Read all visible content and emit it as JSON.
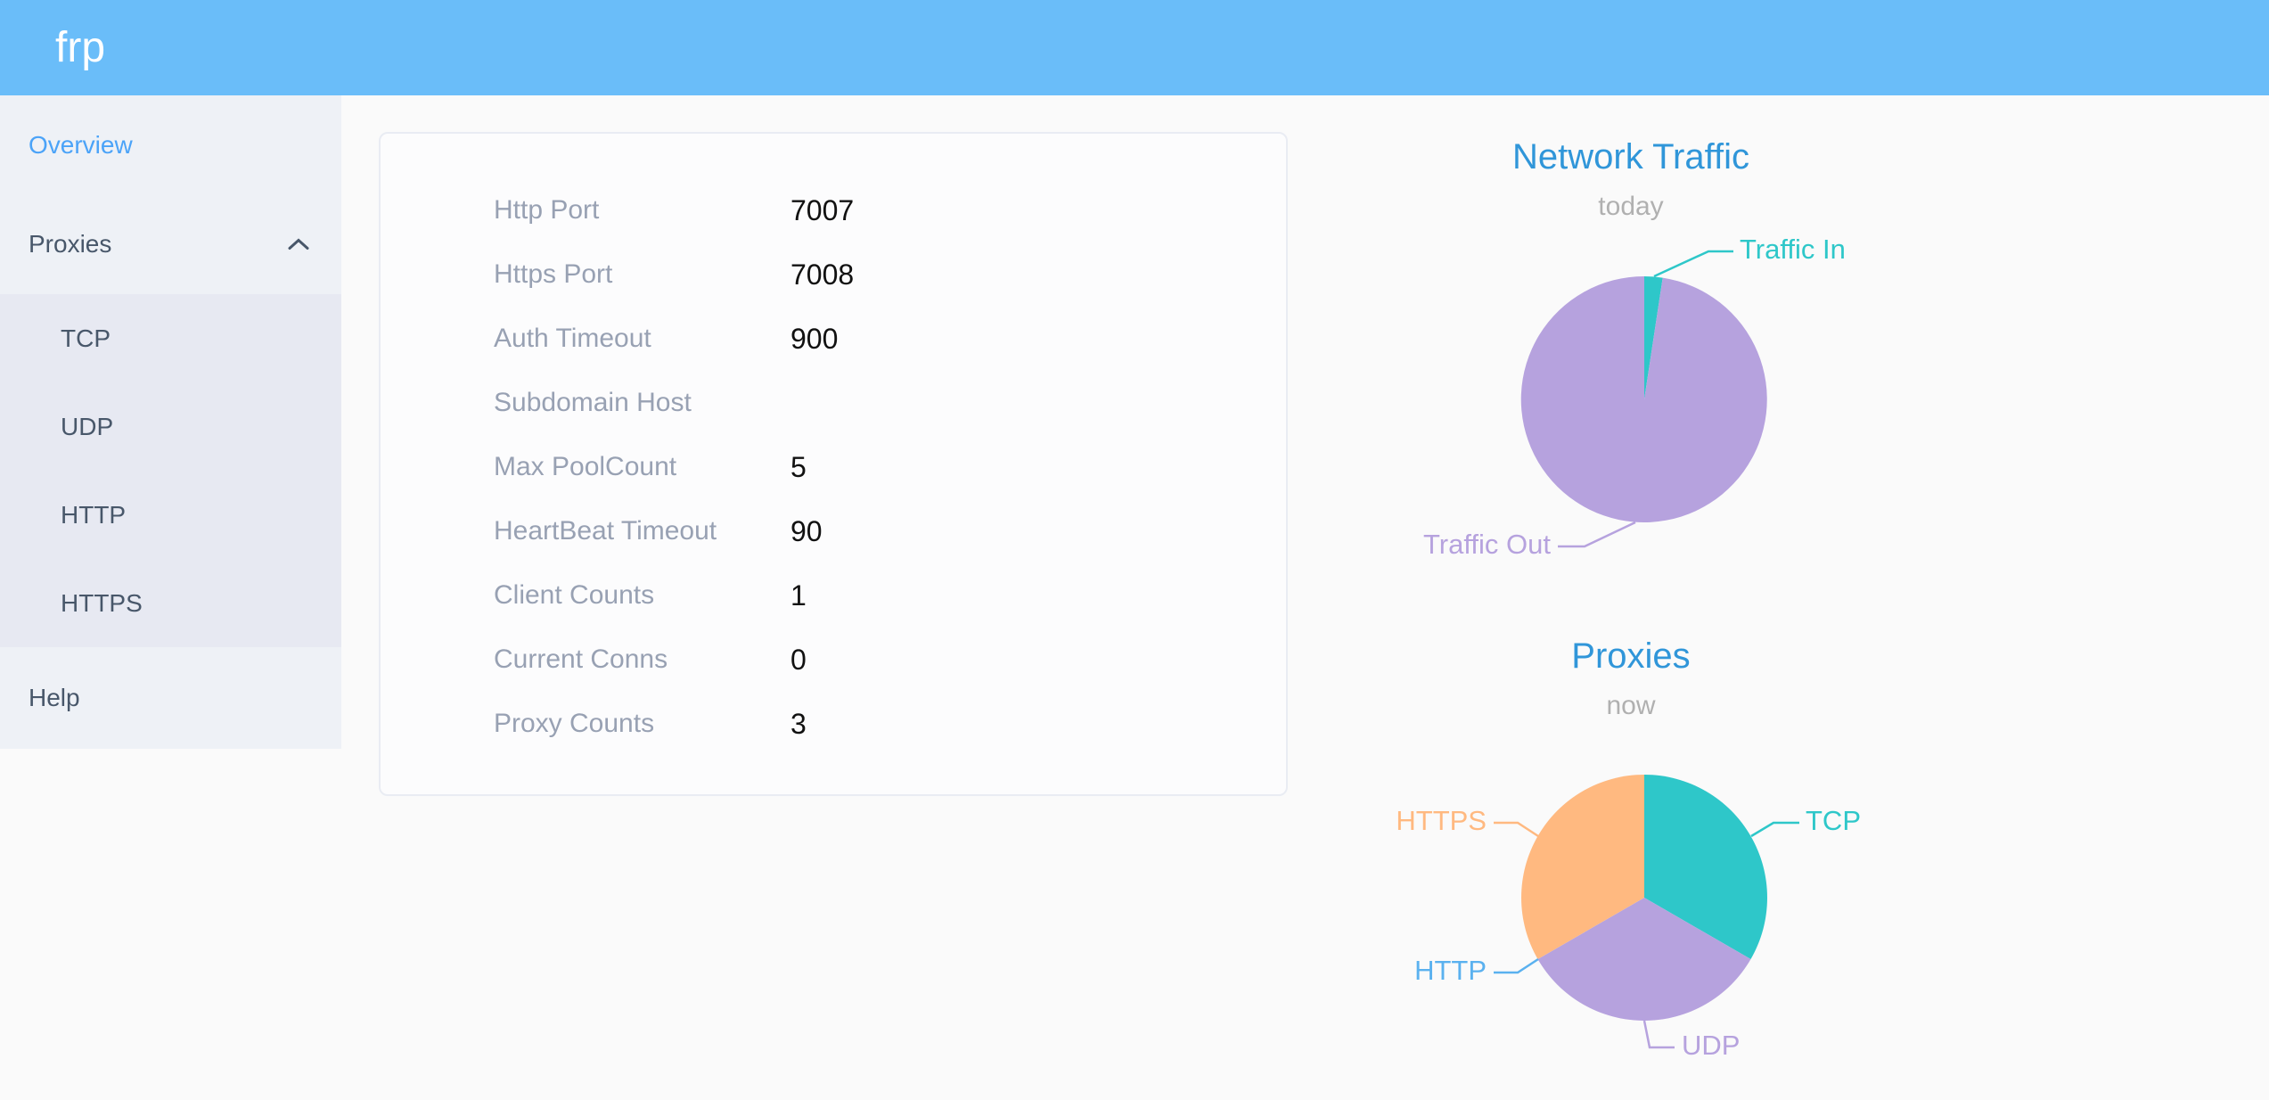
{
  "header": {
    "logo": "frp"
  },
  "sidebar": {
    "items": [
      {
        "label": "Overview",
        "active": true
      },
      {
        "label": "Proxies",
        "expanded": true,
        "children": [
          {
            "label": "TCP"
          },
          {
            "label": "UDP"
          },
          {
            "label": "HTTP"
          },
          {
            "label": "HTTPS"
          }
        ]
      },
      {
        "label": "Help"
      }
    ]
  },
  "server_info": {
    "rows": [
      {
        "label": "Http Port",
        "value": "7007"
      },
      {
        "label": "Https Port",
        "value": "7008"
      },
      {
        "label": "Auth Timeout",
        "value": "900"
      },
      {
        "label": "Subdomain Host",
        "value": ""
      },
      {
        "label": "Max PoolCount",
        "value": "5"
      },
      {
        "label": "HeartBeat Timeout",
        "value": "90"
      },
      {
        "label": "Client Counts",
        "value": "1"
      },
      {
        "label": "Current Conns",
        "value": "0"
      },
      {
        "label": "Proxy Counts",
        "value": "3"
      }
    ]
  },
  "chart_data": [
    {
      "type": "pie",
      "title": "Network Traffic",
      "subtitle": "today",
      "legend_position": "none",
      "labels": "outside-with-leader-lines",
      "series": [
        {
          "name": "Traffic In",
          "value": 2.4,
          "color": "#2ec7c9"
        },
        {
          "name": "Traffic Out",
          "value": 97.6,
          "color": "#b6a2de"
        }
      ]
    },
    {
      "type": "pie",
      "title": "Proxies",
      "subtitle": "now",
      "legend_position": "none",
      "labels": "outside-with-leader-lines",
      "series": [
        {
          "name": "TCP",
          "value": 1,
          "color": "#2ec7c9"
        },
        {
          "name": "UDP",
          "value": 1,
          "color": "#b6a2de"
        },
        {
          "name": "HTTP",
          "value": 0,
          "color": "#5ab1ef"
        },
        {
          "name": "HTTPS",
          "value": 1,
          "color": "#ffb980"
        }
      ]
    }
  ],
  "theme": {
    "page_bg": "#fafafa",
    "header_bg": "#6abdf9",
    "sidebar_bg": "#eef1f6",
    "submenu_bg": "#e7e9f2",
    "sidebar_text": "#48576a",
    "active_item": "#4ba3f8",
    "chart_title": "#3096d9",
    "subtitle": "#b0b0b0",
    "card_border": "#e9ecf3",
    "label_color": "#98a1b3"
  }
}
